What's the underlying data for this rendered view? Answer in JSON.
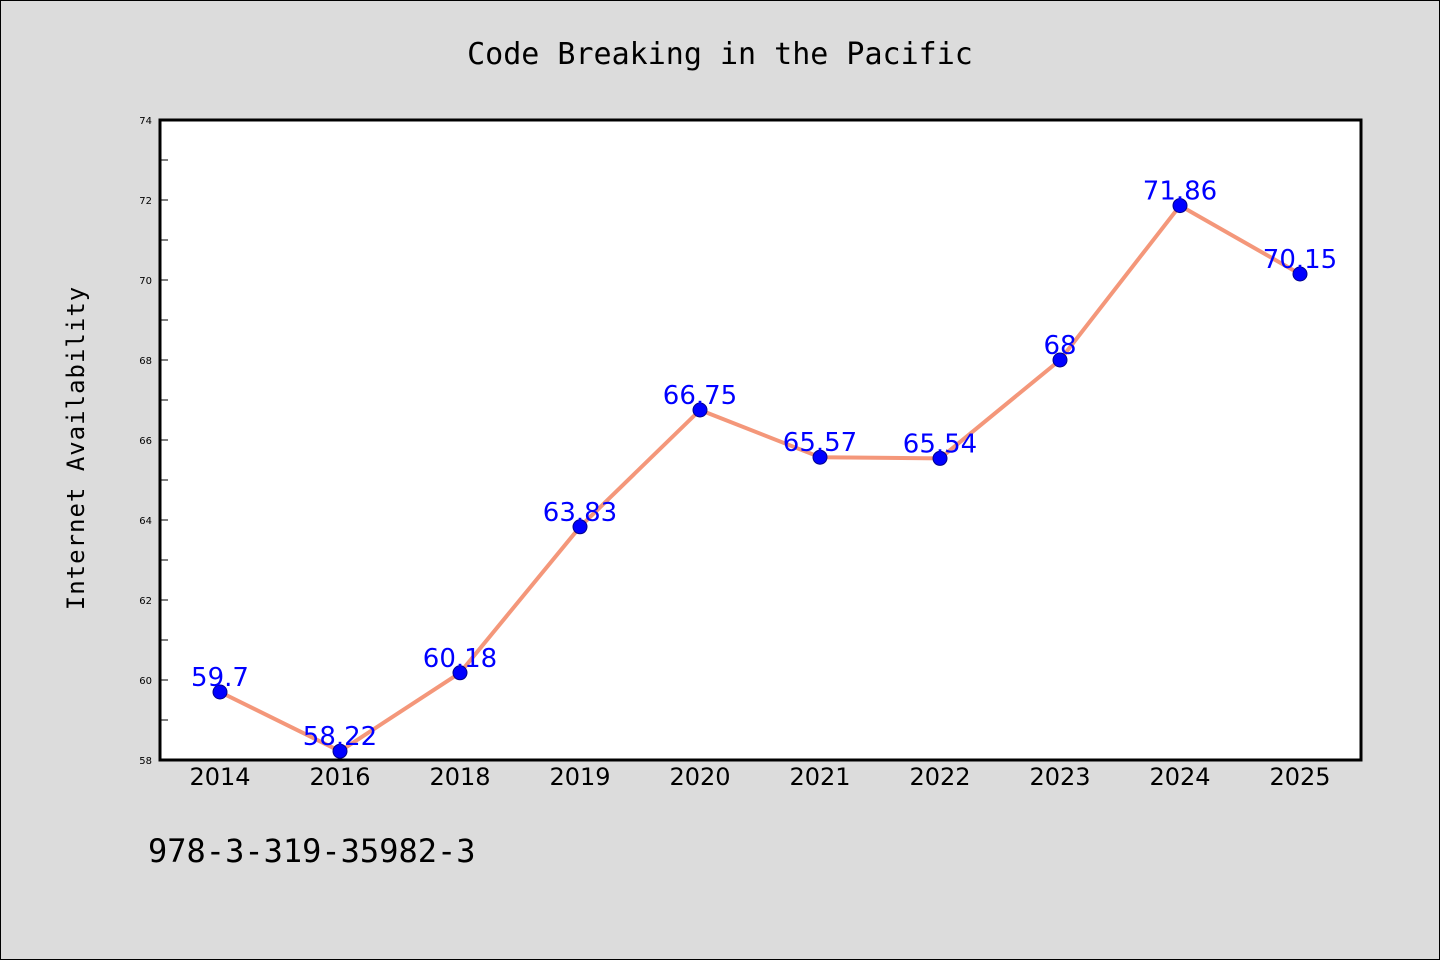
{
  "chart_data": {
    "type": "line",
    "title": "Code Breaking in the Pacific",
    "xlabel": "",
    "ylabel": "Internet Availability",
    "categories": [
      "2014",
      "2016",
      "2018",
      "2019",
      "2020",
      "2021",
      "2022",
      "2023",
      "2024",
      "2025"
    ],
    "series": [
      {
        "values": [
          59.7,
          58.22,
          60.18,
          63.83,
          66.75,
          65.57,
          65.54,
          68,
          71.86,
          70.15
        ],
        "data_labels": [
          "59.7",
          "58.22",
          "60.18",
          "63.83",
          "66.75",
          "65.57",
          "65.54",
          "68",
          "71.86",
          "70.15"
        ],
        "line_color": "#f4977a",
        "marker_color": "#0000ff"
      }
    ],
    "ylim": [
      58,
      74
    ],
    "yticks": [
      58,
      60,
      62,
      64,
      66,
      68,
      70,
      72,
      74
    ],
    "grid": false,
    "legend": "none"
  },
  "footer": {
    "isbn": "978-3-319-35982-3"
  },
  "colors": {
    "background": "#dcdcdc",
    "plot_background": "#ffffff",
    "line": "#f4977a",
    "marker": "#0000ff",
    "data_label": "#0000ff"
  }
}
